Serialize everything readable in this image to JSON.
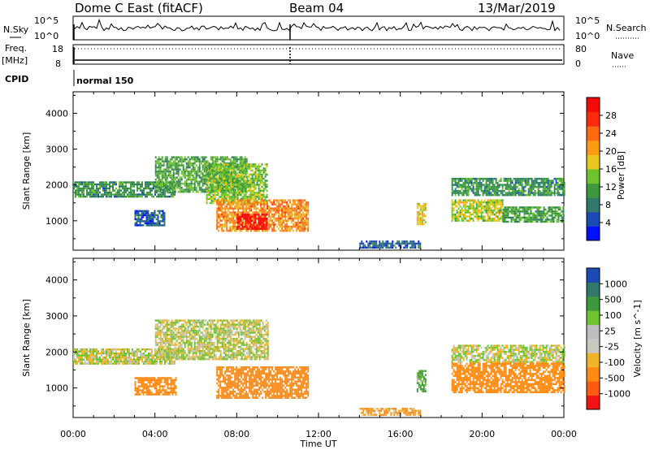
{
  "header": {
    "station": "Dome C East (fitACF)",
    "beam": "Beam 04",
    "date": "13/Mar/2019"
  },
  "panels": {
    "nsky_label": "N.Sky",
    "nsky_top": "10^5",
    "nsky_bottom": "10^0",
    "nsearch_label": "N.Search",
    "nsearch_top": "10^5",
    "nsearch_bottom": "10^0",
    "freq_label": "Freq.",
    "freq_unit": "[MHz]",
    "freq_top": "18",
    "freq_bottom": "8",
    "nave_label": "Nave",
    "nave_top": "80",
    "nave_bottom": "0",
    "cpid_label": "CPID",
    "cpid_value": "normal 150"
  },
  "colors": {
    "power": [
      "#0010ff",
      "#1a4ab4",
      "#2f7a6a",
      "#3c9a3c",
      "#6ec42c",
      "#e6c81e",
      "#ff9a14",
      "#ff6a10",
      "#ff2a0a",
      "#f50a0a"
    ],
    "velocity": [
      "#f51212",
      "#ff5a0f",
      "#ff8a14",
      "#f0b428",
      "#c8c8c0",
      "#bebebe",
      "#6ec42c",
      "#3c9a3c",
      "#2f7a6a",
      "#1a4ab4"
    ]
  },
  "chart_data": [
    {
      "type": "heatmap",
      "title": "Power",
      "xlabel": "Time UT",
      "ylabel": "Slant Range [km]",
      "x_ticks": [
        "00:00",
        "04:00",
        "08:00",
        "12:00",
        "16:00",
        "20:00",
        "00:00"
      ],
      "xlim_hours": [
        0,
        24
      ],
      "y_ticks": [
        1000,
        2000,
        3000,
        4000
      ],
      "ylim": [
        180,
        4600
      ],
      "colorbar": {
        "label": "Power [dB]",
        "ticks": [
          4,
          8,
          12,
          16,
          20,
          24,
          28
        ],
        "range": [
          0,
          32
        ]
      },
      "regions": [
        {
          "t_start": 0.0,
          "t_end": 5.0,
          "r_low": 1700,
          "r_high": 2100,
          "value": 10
        },
        {
          "t_start": 4.0,
          "t_end": 8.5,
          "r_low": 1800,
          "r_high": 2800,
          "value": 12
        },
        {
          "t_start": 6.5,
          "t_end": 9.5,
          "r_low": 1500,
          "r_high": 2600,
          "value": 14
        },
        {
          "t_start": 3.0,
          "t_end": 4.5,
          "r_low": 900,
          "r_high": 1300,
          "value": 6
        },
        {
          "t_start": 7.0,
          "t_end": 11.5,
          "r_low": 700,
          "r_high": 1600,
          "value": 22
        },
        {
          "t_start": 8.0,
          "t_end": 9.5,
          "r_low": 750,
          "r_high": 1200,
          "value": 30
        },
        {
          "t_start": 14.0,
          "t_end": 17.0,
          "r_low": 250,
          "r_high": 450,
          "value": 6
        },
        {
          "t_start": 16.8,
          "t_end": 17.2,
          "r_low": 900,
          "r_high": 1500,
          "value": 18
        },
        {
          "t_start": 18.5,
          "t_end": 24.0,
          "r_low": 1700,
          "r_high": 2200,
          "value": 10
        },
        {
          "t_start": 18.5,
          "t_end": 21.0,
          "r_low": 1000,
          "r_high": 1600,
          "value": 16
        },
        {
          "t_start": 21.0,
          "t_end": 24.0,
          "r_low": 1000,
          "r_high": 1400,
          "value": 12
        }
      ]
    },
    {
      "type": "heatmap",
      "title": "Velocity",
      "xlabel": "Time UT",
      "ylabel": "Slant Range [km]",
      "x_ticks": [
        "00:00",
        "04:00",
        "08:00",
        "12:00",
        "16:00",
        "20:00",
        "00:00"
      ],
      "xlim_hours": [
        0,
        24
      ],
      "y_ticks": [
        1000,
        2000,
        3000,
        4000
      ],
      "ylim": [
        180,
        4600
      ],
      "colorbar": {
        "label": "Velocity [m s^-1]",
        "ticks": [
          -1000,
          -500,
          -100,
          -25,
          25,
          100,
          500,
          1000
        ]
      },
      "regions": [
        {
          "t_start": 0.0,
          "t_end": 5.0,
          "r_low": 1700,
          "r_high": 2100,
          "value": 0
        },
        {
          "t_start": 4.0,
          "t_end": 9.5,
          "r_low": 1800,
          "r_high": 2900,
          "value": 0
        },
        {
          "t_start": 3.0,
          "t_end": 5.0,
          "r_low": 800,
          "r_high": 1300,
          "value": -300
        },
        {
          "t_start": 7.0,
          "t_end": 11.5,
          "r_low": 700,
          "r_high": 1600,
          "value": -300
        },
        {
          "t_start": 14.0,
          "t_end": 17.0,
          "r_low": 250,
          "r_high": 450,
          "value": -100
        },
        {
          "t_start": 16.8,
          "t_end": 17.2,
          "r_low": 900,
          "r_high": 1500,
          "value": 100
        },
        {
          "t_start": 18.5,
          "t_end": 24.0,
          "r_low": 1700,
          "r_high": 2200,
          "value": 0
        },
        {
          "t_start": 18.5,
          "t_end": 24.0,
          "r_low": 900,
          "r_high": 1700,
          "value": -200
        }
      ]
    }
  ]
}
